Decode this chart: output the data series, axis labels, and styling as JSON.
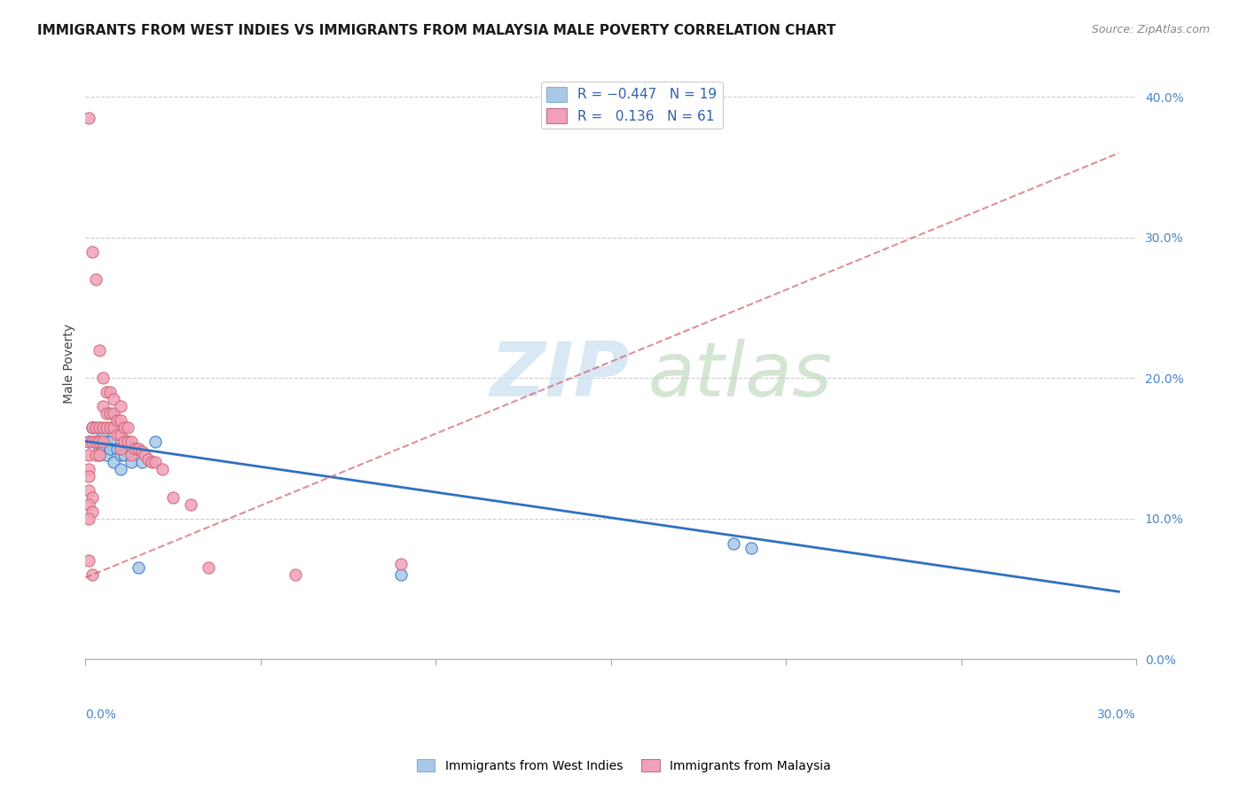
{
  "title": "IMMIGRANTS FROM WEST INDIES VS IMMIGRANTS FROM MALAYSIA MALE POVERTY CORRELATION CHART",
  "source": "Source: ZipAtlas.com",
  "ylabel": "Male Poverty",
  "color_blue": "#a8c8e8",
  "color_pink": "#f0a0b8",
  "color_blue_line": "#3070c0",
  "color_pink_line": "#d06070",
  "watermark_zip": "ZIP",
  "watermark_atlas": "atlas",
  "xlim": [
    0.0,
    0.3
  ],
  "ylim": [
    0.0,
    0.42
  ],
  "ytick_vals": [
    0.0,
    0.1,
    0.2,
    0.3,
    0.4
  ],
  "ytick_labels": [
    "0.0%",
    "10.0%",
    "20.0%",
    "30.0%",
    "40.0%"
  ],
  "xtick_labels_show": [
    "0.0%",
    "30.0%"
  ],
  "blue_scatter_x": [
    0.001,
    0.002,
    0.003,
    0.004,
    0.004,
    0.005,
    0.005,
    0.006,
    0.006,
    0.007,
    0.007,
    0.008,
    0.009,
    0.01,
    0.01,
    0.011,
    0.012,
    0.013,
    0.014,
    0.015,
    0.016,
    0.02,
    0.185,
    0.19,
    0.09
  ],
  "blue_scatter_y": [
    0.155,
    0.165,
    0.155,
    0.15,
    0.145,
    0.16,
    0.15,
    0.155,
    0.145,
    0.155,
    0.15,
    0.14,
    0.15,
    0.145,
    0.135,
    0.145,
    0.155,
    0.14,
    0.15,
    0.065,
    0.14,
    0.155,
    0.082,
    0.079,
    0.06
  ],
  "pink_scatter_x": [
    0.001,
    0.001,
    0.001,
    0.001,
    0.001,
    0.001,
    0.002,
    0.002,
    0.002,
    0.002,
    0.003,
    0.003,
    0.003,
    0.003,
    0.004,
    0.004,
    0.004,
    0.004,
    0.005,
    0.005,
    0.005,
    0.005,
    0.006,
    0.006,
    0.006,
    0.007,
    0.007,
    0.007,
    0.008,
    0.008,
    0.008,
    0.009,
    0.009,
    0.01,
    0.01,
    0.01,
    0.01,
    0.011,
    0.011,
    0.012,
    0.012,
    0.013,
    0.013,
    0.014,
    0.015,
    0.016,
    0.017,
    0.018,
    0.019,
    0.02,
    0.022,
    0.025,
    0.03,
    0.035,
    0.06,
    0.001,
    0.002,
    0.001,
    0.002,
    0.001,
    0.09
  ],
  "pink_scatter_y": [
    0.385,
    0.155,
    0.145,
    0.135,
    0.13,
    0.07,
    0.29,
    0.165,
    0.155,
    0.06,
    0.27,
    0.165,
    0.155,
    0.145,
    0.22,
    0.165,
    0.155,
    0.145,
    0.2,
    0.18,
    0.165,
    0.155,
    0.19,
    0.175,
    0.165,
    0.19,
    0.175,
    0.165,
    0.185,
    0.175,
    0.165,
    0.17,
    0.16,
    0.18,
    0.17,
    0.16,
    0.15,
    0.165,
    0.155,
    0.165,
    0.155,
    0.155,
    0.145,
    0.15,
    0.15,
    0.148,
    0.145,
    0.142,
    0.14,
    0.14,
    0.135,
    0.115,
    0.11,
    0.065,
    0.06,
    0.12,
    0.115,
    0.11,
    0.105,
    0.1,
    0.068
  ],
  "blue_line_x0": 0.0,
  "blue_line_x1": 0.295,
  "blue_line_y0": 0.155,
  "blue_line_y1": 0.048,
  "pink_line_x0": 0.0,
  "pink_line_x1": 0.295,
  "pink_line_y0": 0.058,
  "pink_line_y1": 0.36
}
